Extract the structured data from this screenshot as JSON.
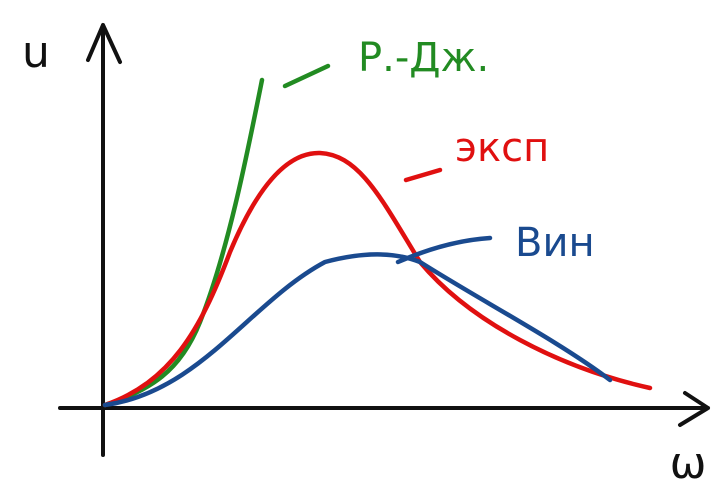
{
  "axes": {
    "y_label": "u",
    "x_label": "ω"
  },
  "curves": [
    {
      "label": "Р.-Дж."
    },
    {
      "label": "эксп"
    },
    {
      "label": "Вин"
    }
  ]
}
